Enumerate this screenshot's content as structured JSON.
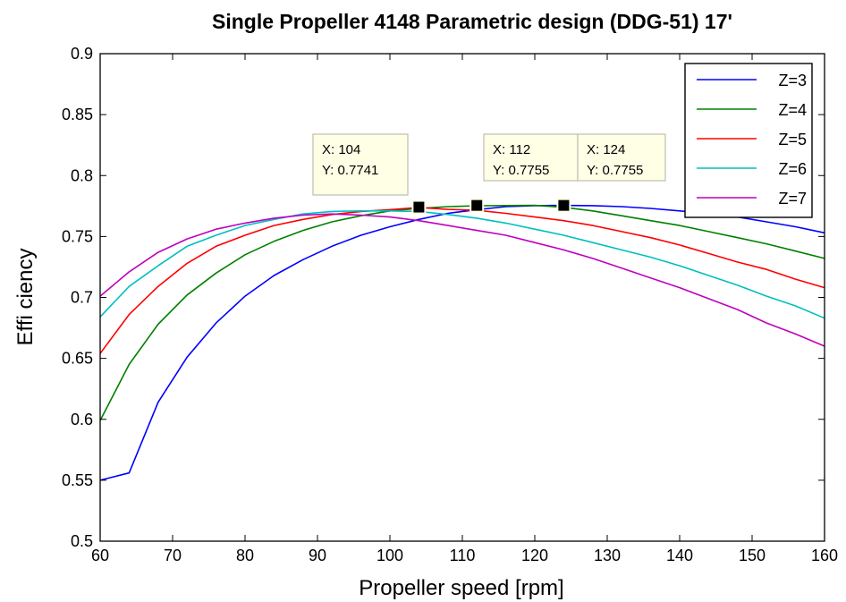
{
  "chart_data": {
    "type": "line",
    "title": "Single Propeller 4148 Parametric design (DDG-51) 17'",
    "xlabel": "Propeller speed [rpm]",
    "ylabel": "Effi ciency",
    "xlim": [
      60,
      160
    ],
    "ylim": [
      0.5,
      0.9
    ],
    "xticks": [
      "60",
      "70",
      "80",
      "90",
      "100",
      "110",
      "120",
      "130",
      "140",
      "150",
      "160"
    ],
    "yticks": [
      "0.5",
      "0.55",
      "0.6",
      "0.65",
      "0.7",
      "0.75",
      "0.8",
      "0.85",
      "0.9"
    ],
    "grid": false,
    "legend_position": "top-right",
    "x": [
      60,
      64,
      68,
      72,
      76,
      80,
      84,
      88,
      92,
      96,
      100,
      104,
      108,
      112,
      116,
      120,
      124,
      128,
      132,
      136,
      140,
      144,
      148,
      152,
      156,
      160
    ],
    "series": [
      {
        "name": "Z=3",
        "color": "#0000ff",
        "values": [
          0.55,
          0.556,
          0.614,
          0.651,
          0.679,
          0.701,
          0.718,
          0.731,
          0.742,
          0.751,
          0.758,
          0.764,
          0.769,
          0.772,
          0.7745,
          0.7753,
          0.7755,
          0.7753,
          0.7745,
          0.773,
          0.771,
          0.769,
          0.766,
          0.762,
          0.758,
          0.753
        ]
      },
      {
        "name": "Z=4",
        "color": "#008000",
        "values": [
          0.599,
          0.645,
          0.678,
          0.702,
          0.72,
          0.735,
          0.746,
          0.755,
          0.762,
          0.767,
          0.771,
          0.773,
          0.7745,
          0.7752,
          0.7754,
          0.7755,
          0.774,
          0.771,
          0.767,
          0.763,
          0.759,
          0.754,
          0.749,
          0.744,
          0.738,
          0.732
        ]
      },
      {
        "name": "Z=5",
        "color": "#ff0000",
        "values": [
          0.654,
          0.686,
          0.709,
          0.728,
          0.742,
          0.751,
          0.759,
          0.764,
          0.768,
          0.7705,
          0.772,
          0.7738,
          0.7722,
          0.7715,
          0.769,
          0.766,
          0.763,
          0.759,
          0.754,
          0.749,
          0.743,
          0.736,
          0.729,
          0.723,
          0.715,
          0.708
        ]
      },
      {
        "name": "Z=6",
        "color": "#00bfbf",
        "values": [
          0.684,
          0.709,
          0.726,
          0.742,
          0.751,
          0.759,
          0.764,
          0.7685,
          0.7705,
          0.771,
          0.771,
          0.7705,
          0.768,
          0.765,
          0.761,
          0.756,
          0.751,
          0.745,
          0.739,
          0.733,
          0.726,
          0.718,
          0.71,
          0.701,
          0.693,
          0.683
        ]
      },
      {
        "name": "Z=7",
        "color": "#bf00bf",
        "values": [
          0.701,
          0.721,
          0.737,
          0.748,
          0.756,
          0.761,
          0.765,
          0.7675,
          0.7685,
          0.7675,
          0.766,
          0.763,
          0.759,
          0.755,
          0.751,
          0.745,
          0.739,
          0.732,
          0.724,
          0.716,
          0.708,
          0.699,
          0.69,
          0.679,
          0.67,
          0.66
        ]
      }
    ],
    "datatips": [
      {
        "x": 104,
        "y": 0.7741,
        "xtext": "X: 104",
        "ytext": "Y: 0.7741"
      },
      {
        "x": 112,
        "y": 0.7755,
        "xtext": "X: 112",
        "ytext": "Y: 0.7755"
      },
      {
        "x": 124,
        "y": 0.7755,
        "xtext": "X: 124",
        "ytext": "Y: 0.7755"
      }
    ]
  }
}
